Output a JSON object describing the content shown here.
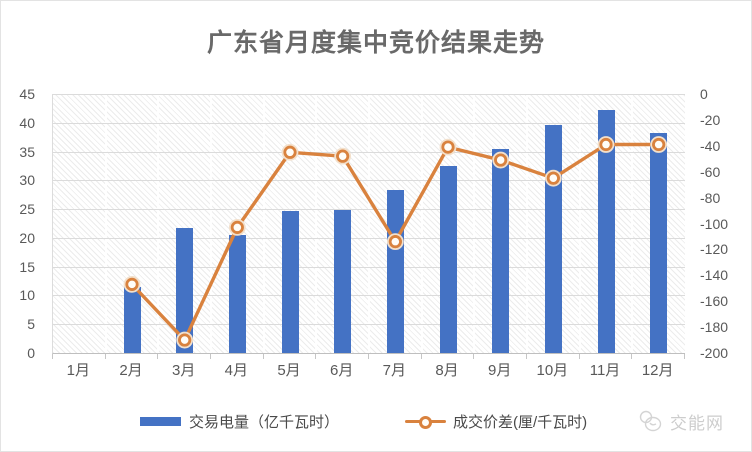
{
  "chart_data": {
    "type": "bar",
    "subtype": "combo-bar-line-dual-axis",
    "title": "广东省月度集中竞价结果走势",
    "categories": [
      "1月",
      "2月",
      "3月",
      "4月",
      "5月",
      "6月",
      "7月",
      "8月",
      "9月",
      "10月",
      "11月",
      "12月"
    ],
    "series": [
      {
        "name": "交易电量（亿千瓦时）",
        "type": "bar",
        "axis": "left",
        "color": "#4472C4",
        "values": [
          null,
          11.4,
          21.7,
          20.5,
          24.7,
          24.9,
          28.4,
          32.5,
          35.5,
          39.7,
          42.2,
          38.3
        ]
      },
      {
        "name": "成交价差(厘/千瓦时)",
        "type": "line",
        "axis": "right",
        "color": "#D9823E",
        "marker": "open-circle",
        "values": [
          null,
          -147,
          -190,
          -103,
          -45,
          -48,
          -114,
          -41,
          -51,
          -65,
          -39,
          -39
        ]
      }
    ],
    "left_axis": {
      "min": 0,
      "max": 45,
      "step": 5,
      "ticks": [
        "45",
        "40",
        "35",
        "30",
        "25",
        "20",
        "15",
        "10",
        "5",
        "0"
      ]
    },
    "right_axis": {
      "min": -200,
      "max": 0,
      "step": 20,
      "ticks": [
        "0",
        "-20",
        "-40",
        "-60",
        "-80",
        "-100",
        "-120",
        "-140",
        "-160",
        "-180",
        "-200"
      ]
    },
    "grid": "horizontal-on",
    "plot_background": "diagonal-hatch",
    "legend_position": "bottom"
  },
  "legend": {
    "items": [
      {
        "label": "交易电量（亿千瓦时）",
        "swatch": "blue-bar"
      },
      {
        "label": "成交价差(厘/千瓦时)",
        "swatch": "orange-line-marker"
      }
    ]
  },
  "watermark": {
    "text": "交能网",
    "logo": "jiaonengwang-doodle"
  },
  "colors": {
    "bar": "#4472C4",
    "line": "#D9823E",
    "marker_fill": "#fffdf8",
    "grid": "#dbdbdb",
    "axis_line": "#bfbfbf",
    "tick_text": "#595959",
    "title_text": "#696969",
    "watermark_text": "#cdcdcd"
  }
}
